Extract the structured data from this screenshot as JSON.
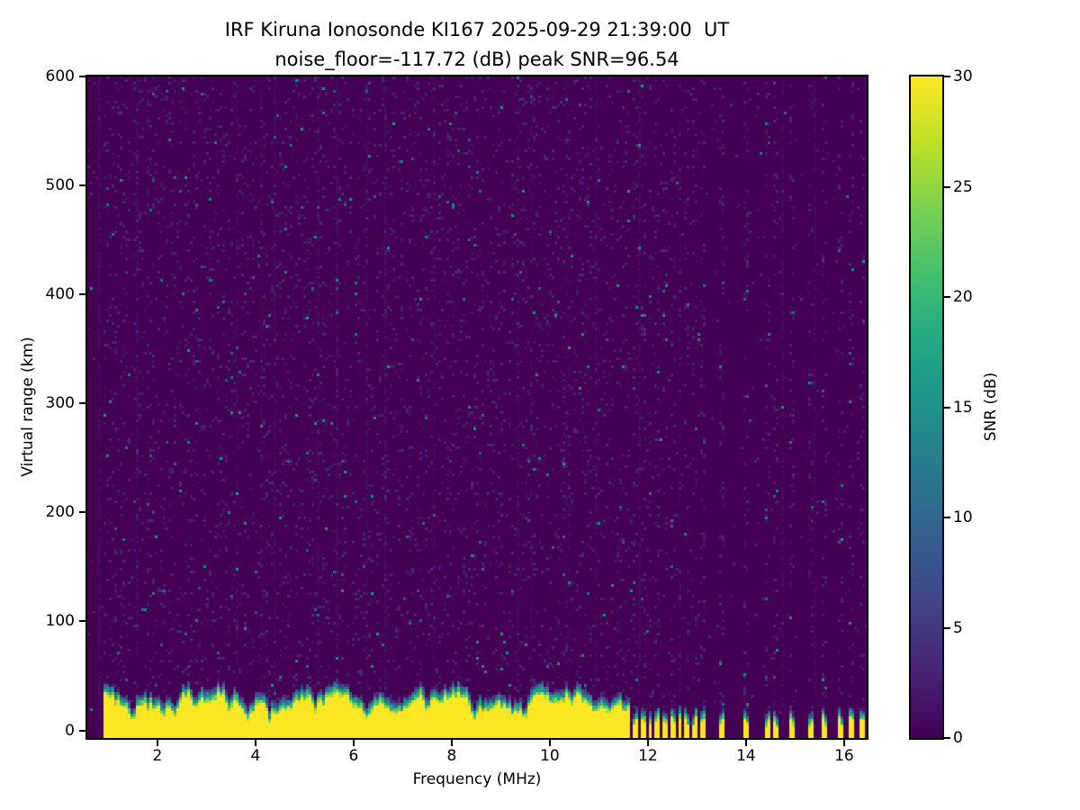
{
  "chart_data": {
    "type": "heatmap",
    "title": "IRF Kiruna Ionosonde KI167 2025-09-29 21:39:00  UT",
    "subtitle": "noise_floor=-117.72 (dB) peak SNR=96.54",
    "xlabel": "Frequency (MHz)",
    "ylabel": "Virtual range (km)",
    "xlim": [
      0.57,
      16.46
    ],
    "ylim": [
      -7,
      600
    ],
    "xticks": [
      2,
      4,
      6,
      8,
      10,
      12,
      14,
      16
    ],
    "yticks": [
      0,
      100,
      200,
      300,
      400,
      500,
      600
    ],
    "grid": false,
    "colorbar": {
      "label": "SNR (dB)",
      "min": 0,
      "max": 30,
      "ticks": [
        0,
        5,
        10,
        15,
        20,
        25,
        30
      ],
      "colormap": "viridis",
      "colormap_stops": [
        "#440154",
        "#482475",
        "#414487",
        "#355f8d",
        "#2a788e",
        "#21918c",
        "#22a884",
        "#44bf70",
        "#7ad151",
        "#bddf26",
        "#fde725"
      ]
    },
    "features": {
      "background_snr_db": 0,
      "noise_speckle_max_db": 5,
      "ground_clutter_band": {
        "freq_range_mhz": [
          0.9,
          11.65
        ],
        "range_km": [
          0,
          30
        ],
        "snr_db": 30,
        "fringe_km": 13
      },
      "sparse_columns_mhz": [
        11.75,
        11.9,
        12.05,
        12.2,
        12.35,
        12.5,
        12.65,
        12.8,
        12.95,
        13.1,
        13.5,
        14.0,
        14.45,
        14.6,
        14.95,
        15.3,
        15.6,
        15.95,
        16.15,
        16.35
      ],
      "band_notch_freqs_mhz": [
        1.5,
        2.35,
        2.75,
        3.45,
        3.85,
        4.3,
        5.2,
        6.3,
        7.5,
        8.45,
        9.5,
        10.45,
        11.2
      ]
    }
  }
}
